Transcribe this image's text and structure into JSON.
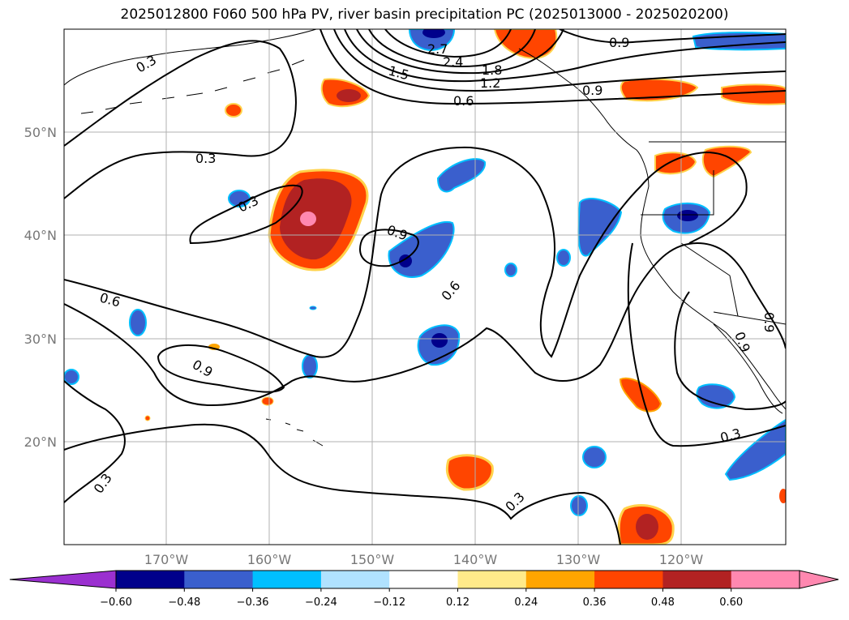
{
  "title": "2025012800 F060 500 hPa PV, river basin precipitation PC (2025013000 - 2025020200)",
  "lat_labels": [
    "50°N",
    "40°N",
    "30°N",
    "20°N"
  ],
  "lon_labels": [
    "170°W",
    "160°W",
    "150°W",
    "140°W",
    "130°W",
    "120°W"
  ],
  "colorbar": {
    "labels": [
      "−0.60",
      "−0.48",
      "−0.36",
      "−0.24",
      "−0.12",
      "0.12",
      "0.24",
      "0.36",
      "0.48",
      "0.60"
    ],
    "colors": [
      "#9b30d0",
      "#00008b",
      "#3a5fcd",
      "#00bfff",
      "#b0e2ff",
      "#ffffff",
      "#ffea8a",
      "#ffa500",
      "#ff4500",
      "#b22222",
      "#ff88b0",
      "#ff88b0"
    ]
  },
  "contour_labels": [
    "0.3",
    "2.7",
    "2.4",
    "1.5",
    "1.8",
    "1.2",
    "0.6",
    "0.9",
    "0.9",
    "0.3",
    "0.3",
    "0.9",
    "0.6",
    "0.6",
    "0.9",
    "0.3",
    "0.3",
    "0.3",
    "0.9",
    "0.9"
  ]
}
